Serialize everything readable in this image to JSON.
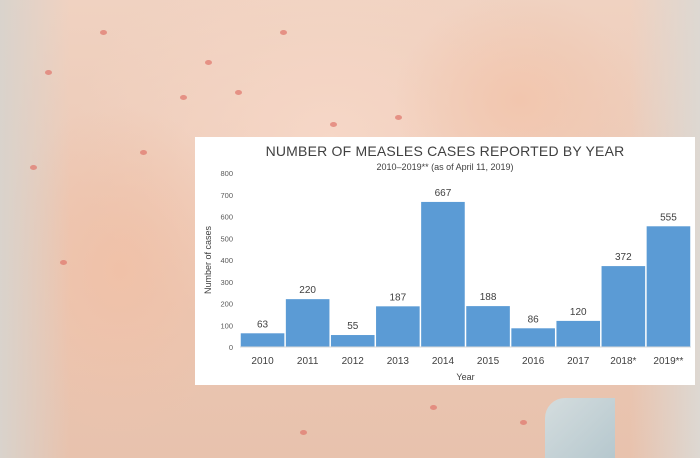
{
  "chart_data": {
    "type": "bar",
    "title": "NUMBER OF MEASLES CASES REPORTED BY YEAR",
    "subtitle": "2010–2019** (as of April 11, 2019)",
    "xlabel": "Year",
    "ylabel": "Number of cases",
    "categories": [
      "2010",
      "2011",
      "2012",
      "2013",
      "2014",
      "2015",
      "2016",
      "2017",
      "2018*",
      "2019**"
    ],
    "values": [
      63,
      220,
      55,
      187,
      667,
      188,
      86,
      120,
      372,
      555
    ],
    "ylim": [
      0,
      800
    ],
    "yticks": [
      0,
      100,
      200,
      300,
      400,
      500,
      600,
      700,
      800
    ],
    "grid": false,
    "bar_color": "#5b9bd5"
  }
}
